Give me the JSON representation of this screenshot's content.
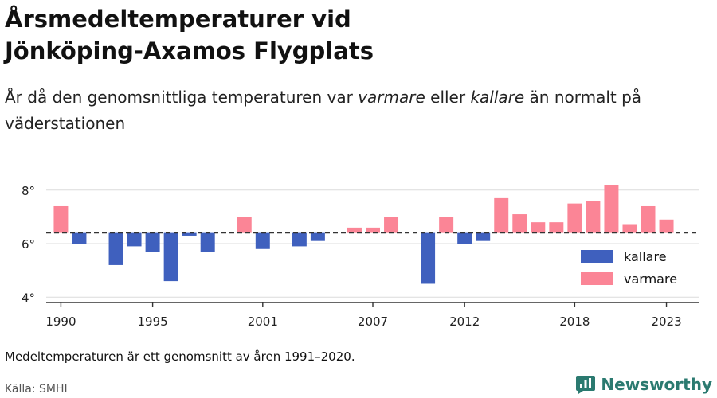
{
  "header": {
    "title_line1": "Årsmedeltemperaturer vid",
    "title_line2": "Jönköping-Axamos Flygplats",
    "subtitle_before": "År då den genomsnittliga temperaturen var ",
    "subtitle_warm": "varmare",
    "subtitle_mid": " eller ",
    "subtitle_cold": "kallare",
    "subtitle_after": " än normalt på väderstationen"
  },
  "footer": {
    "note": "Medeltemperaturen är ett genomsnitt av åren 1991–2020.",
    "source": "Källa: SMHI",
    "brand": "Newsworthy"
  },
  "colors": {
    "cold": "#3f60be",
    "warm": "#fb8596",
    "grid": "#dcdcdc",
    "axis": "#333333",
    "brand": "#2b7a70"
  },
  "chart_data": {
    "type": "bar",
    "x": [
      1990,
      1991,
      1992,
      1993,
      1994,
      1995,
      1996,
      1997,
      1998,
      1999,
      2000,
      2001,
      2002,
      2003,
      2004,
      2005,
      2006,
      2007,
      2008,
      2009,
      2010,
      2011,
      2012,
      2013,
      2014,
      2015,
      2016,
      2017,
      2018,
      2019,
      2020,
      2021,
      2022,
      2023
    ],
    "values": [
      7.4,
      6.0,
      null,
      5.2,
      5.9,
      5.7,
      4.6,
      6.3,
      5.7,
      null,
      7.0,
      5.8,
      null,
      5.9,
      6.1,
      null,
      6.6,
      6.6,
      7.0,
      null,
      4.5,
      7.0,
      6.0,
      6.1,
      7.7,
      7.1,
      6.8,
      6.8,
      7.5,
      7.6,
      8.2,
      6.7,
      7.4,
      6.9
    ],
    "baseline": 6.4,
    "xticks": [
      1990,
      1995,
      2001,
      2007,
      2012,
      2018,
      2023
    ],
    "xtick_labels": [
      "1990",
      "1995",
      "2001",
      "2007",
      "2012",
      "2018",
      "2023"
    ],
    "yticks": [
      4,
      6,
      8
    ],
    "ytick_labels": [
      "4°",
      "6°",
      "8°"
    ],
    "ylim": [
      3.8,
      8.5
    ],
    "xlim": [
      1989.2,
      2024.8
    ],
    "legend": [
      {
        "key": "cold",
        "label": "kallare"
      },
      {
        "key": "warm",
        "label": "varmare"
      }
    ],
    "legend_position": "right",
    "grid": true
  }
}
